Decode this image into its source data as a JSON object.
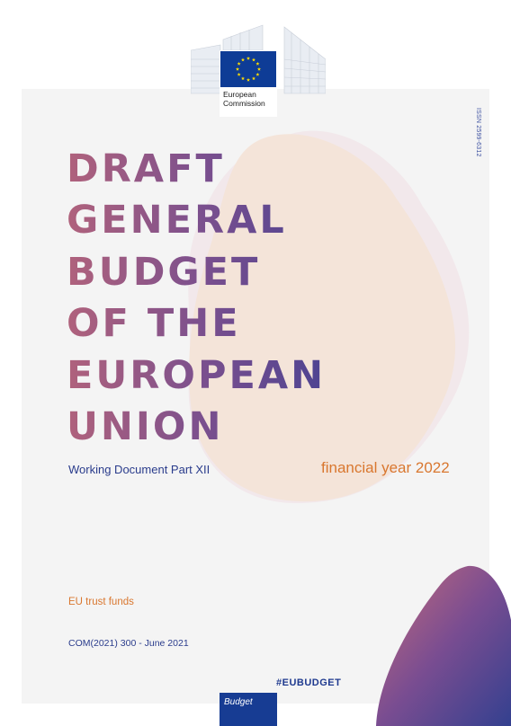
{
  "logo": {
    "line1": "European",
    "line2": "Commission",
    "colors": {
      "flag_blue": "#0e3c96",
      "stars": "#ffdd00"
    }
  },
  "issn": "ISSN 2599-6312",
  "title": {
    "lines": [
      "DRAFT",
      "GENERAL",
      "BUDGET",
      "OF THE",
      "EUROPEAN",
      "UNION"
    ],
    "gradient": [
      "#b0627c",
      "#7a4f8e",
      "#3d3f93"
    ]
  },
  "subtitle": "Working Document Part XII",
  "financial_year": "financial year 2022",
  "topic": "EU trust funds",
  "reference": "COM(2021) 300  - June 2021",
  "hashtag": "#EUBUDGET",
  "tab_label": "Budget",
  "colors": {
    "accent_orange": "#d9772f",
    "accent_blue": "#2a3c8c",
    "sheet": "#f4f4f4",
    "blob": "#f4e4d9"
  }
}
